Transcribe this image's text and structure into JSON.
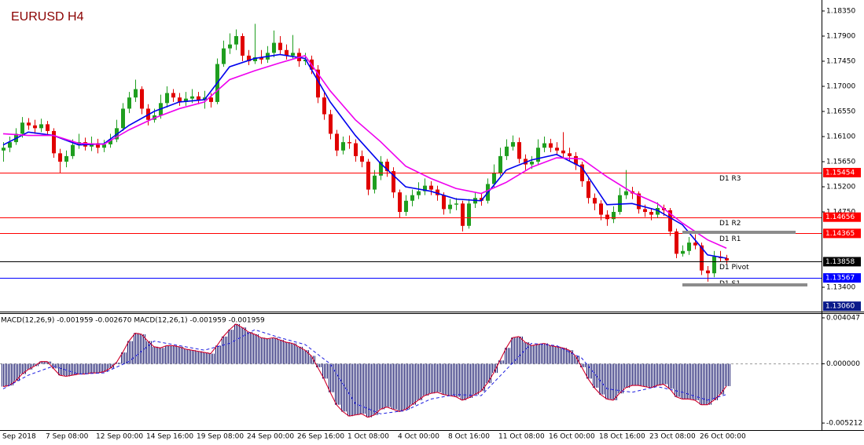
{
  "chart_data": [
    {
      "type": "candlestick",
      "title": "EURUSD H4",
      "categories": [
        "Sep 2018",
        null,
        null,
        null,
        null,
        null,
        null,
        "7 Sep 08:00",
        null,
        null,
        null,
        null,
        null,
        null,
        null,
        "12 Sep 00:00",
        null,
        null,
        null,
        null,
        null,
        null,
        null,
        "14 Sep 16:00",
        null,
        null,
        null,
        null,
        null,
        null,
        null,
        "19 Sep 08:00",
        null,
        null,
        null,
        null,
        null,
        null,
        null,
        "24 Sep 00:00",
        null,
        null,
        null,
        null,
        null,
        null,
        null,
        "26 Sep 16:00",
        null,
        null,
        null,
        null,
        null,
        null,
        null,
        "1 Oct 08:00",
        null,
        null,
        null,
        null,
        null,
        null,
        null,
        "4 Oct 00:00",
        null,
        null,
        null,
        null,
        null,
        null,
        null,
        "8 Oct 16:00",
        null,
        null,
        null,
        null,
        null,
        null,
        null,
        "11 Oct 08:00",
        null,
        null,
        null,
        null,
        null,
        null,
        null,
        "16 Oct 00:00",
        null,
        null,
        null,
        null,
        null,
        null,
        null,
        "18 Oct 16:00",
        null,
        null,
        null,
        null,
        null,
        null,
        null,
        "23 Oct 08:00",
        null,
        null,
        null,
        null,
        null,
        null,
        null,
        "26 Oct 00:00",
        null,
        null,
        null,
        null
      ],
      "open": [
        1.1585,
        1.159,
        1.16,
        1.1615,
        1.1635,
        1.163,
        1.1625,
        1.1632,
        1.162,
        1.158,
        1.1565,
        1.1575,
        1.1595,
        1.16,
        1.1592,
        1.1598,
        1.159,
        1.1596,
        1.1605,
        1.1625,
        1.166,
        1.168,
        1.1695,
        1.166,
        1.164,
        1.1648,
        1.167,
        1.1688,
        1.168,
        1.1672,
        1.1678,
        1.1682,
        1.1676,
        1.168,
        1.1672,
        1.174,
        1.1768,
        1.1775,
        1.179,
        1.1755,
        1.1745,
        1.1752,
        1.1748,
        1.176,
        1.1778,
        1.1765,
        1.1755,
        1.176,
        1.1745,
        1.1748,
        1.173,
        1.168,
        1.165,
        1.1615,
        1.1585,
        1.16,
        1.1598,
        1.1575,
        1.1565,
        1.1515,
        1.154,
        1.1565,
        1.1548,
        1.151,
        1.1475,
        1.1495,
        1.1505,
        1.1512,
        1.1522,
        1.1515,
        1.1505,
        1.148,
        1.1488,
        1.149,
        1.145,
        1.149,
        1.15,
        1.1495,
        1.1525,
        1.1545,
        1.1575,
        1.1592,
        1.16,
        1.157,
        1.156,
        1.1565,
        1.159,
        1.1598,
        1.159,
        1.1585,
        1.158,
        1.1575,
        1.156,
        1.153,
        1.15,
        1.149,
        1.147,
        1.1462,
        1.1475,
        1.1505,
        1.1512,
        1.1508,
        1.148,
        1.1475,
        1.147,
        1.1482,
        1.1478,
        1.144,
        1.14,
        1.1405,
        1.142,
        1.1415,
        1.137,
        1.1365,
        1.1395,
        1.1392
      ],
      "high": [
        1.16,
        1.161,
        1.1625,
        1.1645,
        1.1643,
        1.164,
        1.1642,
        1.1638,
        1.1625,
        1.1588,
        1.1585,
        1.1605,
        1.1615,
        1.1608,
        1.161,
        1.1606,
        1.1604,
        1.1615,
        1.164,
        1.167,
        1.169,
        1.1712,
        1.17,
        1.1668,
        1.166,
        1.1685,
        1.17,
        1.1695,
        1.1688,
        1.169,
        1.1695,
        1.169,
        1.1692,
        1.1688,
        1.175,
        1.1782,
        1.1795,
        1.1802,
        1.1795,
        1.1765,
        1.1812,
        1.1765,
        1.1772,
        1.18,
        1.179,
        1.1775,
        1.1792,
        1.1768,
        1.176,
        1.1755,
        1.1738,
        1.169,
        1.1658,
        1.1622,
        1.161,
        1.1612,
        1.1605,
        1.1585,
        1.157,
        1.155,
        1.1575,
        1.157,
        1.1555,
        1.1515,
        1.1505,
        1.1515,
        1.1528,
        1.1535,
        1.153,
        1.1522,
        1.151,
        1.1498,
        1.15,
        1.1495,
        1.1498,
        1.151,
        1.1508,
        1.1535,
        1.156,
        1.159,
        1.1605,
        1.1612,
        1.1608,
        1.1578,
        1.1575,
        1.1605,
        1.161,
        1.1606,
        1.16,
        1.1618,
        1.159,
        1.1582,
        1.1565,
        1.1535,
        1.1508,
        1.1496,
        1.1478,
        1.1485,
        1.1518,
        1.155,
        1.152,
        1.1512,
        1.1488,
        1.1482,
        1.1492,
        1.1488,
        1.1482,
        1.1445,
        1.1415,
        1.143,
        1.1435,
        1.142,
        1.1378,
        1.1405,
        1.1405,
        1.1398
      ],
      "low": [
        1.1565,
        1.1582,
        1.1595,
        1.1608,
        1.1622,
        1.1615,
        1.1618,
        1.1612,
        1.1572,
        1.1545,
        1.1555,
        1.157,
        1.1588,
        1.1585,
        1.1584,
        1.158,
        1.1582,
        1.159,
        1.16,
        1.162,
        1.1652,
        1.1672,
        1.165,
        1.163,
        1.1635,
        1.1642,
        1.1662,
        1.1672,
        1.1665,
        1.1665,
        1.167,
        1.1668,
        1.166,
        1.1662,
        1.1668,
        1.1735,
        1.1758,
        1.1765,
        1.1745,
        1.1738,
        1.174,
        1.174,
        1.1742,
        1.1752,
        1.1758,
        1.1748,
        1.175,
        1.1735,
        1.1738,
        1.1722,
        1.167,
        1.164,
        1.1605,
        1.1575,
        1.1578,
        1.1588,
        1.1565,
        1.1555,
        1.1505,
        1.1508,
        1.1532,
        1.1538,
        1.15,
        1.1465,
        1.1468,
        1.1485,
        1.1498,
        1.1505,
        1.1505,
        1.1495,
        1.147,
        1.1472,
        1.1478,
        1.144,
        1.1445,
        1.1482,
        1.1486,
        1.149,
        1.1518,
        1.154,
        1.1568,
        1.1585,
        1.1562,
        1.155,
        1.1552,
        1.156,
        1.1582,
        1.1582,
        1.1576,
        1.1572,
        1.1566,
        1.155,
        1.152,
        1.149,
        1.1478,
        1.146,
        1.145,
        1.1455,
        1.147,
        1.1498,
        1.1498,
        1.1472,
        1.1466,
        1.146,
        1.1464,
        1.1468,
        1.1432,
        1.1392,
        1.1395,
        1.1398,
        1.1408,
        1.1362,
        1.135,
        1.1358,
        1.1385,
        1.1382
      ],
      "close": [
        1.159,
        1.16,
        1.1615,
        1.1635,
        1.163,
        1.1625,
        1.1632,
        1.162,
        1.158,
        1.1565,
        1.1575,
        1.1595,
        1.16,
        1.1592,
        1.1598,
        1.159,
        1.1596,
        1.1605,
        1.1625,
        1.166,
        1.168,
        1.1695,
        1.166,
        1.164,
        1.1648,
        1.167,
        1.1688,
        1.168,
        1.1672,
        1.1678,
        1.1682,
        1.1676,
        1.168,
        1.1672,
        1.174,
        1.1768,
        1.1775,
        1.179,
        1.1755,
        1.1745,
        1.1752,
        1.1748,
        1.176,
        1.1778,
        1.1765,
        1.1755,
        1.176,
        1.1745,
        1.1748,
        1.173,
        1.168,
        1.165,
        1.1615,
        1.1585,
        1.16,
        1.1598,
        1.1575,
        1.1565,
        1.1515,
        1.154,
        1.1565,
        1.1548,
        1.151,
        1.1475,
        1.1495,
        1.1505,
        1.1512,
        1.1522,
        1.1515,
        1.1505,
        1.148,
        1.1488,
        1.149,
        1.145,
        1.149,
        1.15,
        1.1495,
        1.1525,
        1.1545,
        1.1575,
        1.1592,
        1.16,
        1.157,
        1.156,
        1.1565,
        1.159,
        1.1598,
        1.159,
        1.1585,
        1.158,
        1.1575,
        1.156,
        1.153,
        1.15,
        1.149,
        1.147,
        1.1462,
        1.1475,
        1.1505,
        1.1512,
        1.1508,
        1.148,
        1.1475,
        1.147,
        1.1482,
        1.1478,
        1.144,
        1.14,
        1.1405,
        1.142,
        1.1415,
        1.137,
        1.1365,
        1.1395,
        1.1392,
        1.1388
      ],
      "up_color": "#1f9e1f",
      "down_color": "#e00000",
      "lines": [
        {
          "color": "#0000ee",
          "x": [
            0,
            4,
            8,
            12,
            16,
            20,
            24,
            28,
            32,
            36,
            40,
            44,
            48,
            52,
            56,
            60,
            64,
            68,
            72,
            76,
            80,
            84,
            88,
            92,
            96,
            100,
            104,
            108,
            112,
            115
          ],
          "values": [
            1.1595,
            1.1618,
            1.1612,
            1.1595,
            1.1597,
            1.163,
            1.1655,
            1.1672,
            1.1676,
            1.1735,
            1.175,
            1.1757,
            1.175,
            1.1672,
            1.1612,
            1.1562,
            1.152,
            1.1512,
            1.1498,
            1.1495,
            1.155,
            1.1568,
            1.1578,
            1.1555,
            1.1488,
            1.149,
            1.1478,
            1.1452,
            1.1398,
            1.1392
          ]
        },
        {
          "color": "#ee00ee",
          "x": [
            0,
            4,
            8,
            12,
            16,
            20,
            24,
            28,
            32,
            36,
            40,
            44,
            48,
            52,
            56,
            60,
            64,
            68,
            72,
            76,
            80,
            84,
            88,
            92,
            96,
            100,
            104,
            108,
            112,
            115
          ],
          "values": [
            1.1615,
            1.1612,
            1.1612,
            1.1598,
            1.1596,
            1.1622,
            1.1643,
            1.166,
            1.1672,
            1.1712,
            1.1728,
            1.1742,
            1.1755,
            1.1692,
            1.164,
            1.1601,
            1.1557,
            1.1535,
            1.1517,
            1.1508,
            1.1528,
            1.1555,
            1.1572,
            1.157,
            1.1538,
            1.151,
            1.149,
            1.1455,
            1.1425,
            1.141
          ]
        }
      ],
      "levels": [
        {
          "name": "D1 R3",
          "value": 1.15454,
          "color": "#ff0000"
        },
        {
          "name": "D1 R2",
          "value": 1.14656,
          "color": "#ff0000"
        },
        {
          "name": "D1 R1",
          "value": 1.14365,
          "color": "#ff0000"
        },
        {
          "name": "D1 Pivot",
          "value": 1.13858,
          "color": "#000000"
        },
        {
          "name": "D1 S1",
          "value": 1.13567,
          "color": "#0000ff"
        }
      ],
      "price_tags": [
        {
          "value": 1.1306,
          "label": "1.13060",
          "color": "#0a1a8a"
        }
      ],
      "ylim": [
        1.12964,
        1.18547
      ],
      "yticks": [
        {
          "value": 1.1835,
          "label": "1.18350"
        },
        {
          "value": 1.179,
          "label": "1.17900"
        },
        {
          "value": 1.1745,
          "label": "1.17450"
        },
        {
          "value": 1.17,
          "label": "1.17000"
        },
        {
          "value": 1.1655,
          "label": "1.16550"
        },
        {
          "value": 1.161,
          "label": "1.16100"
        },
        {
          "value": 1.1565,
          "label": "1.15650"
        },
        {
          "value": 1.152,
          "label": "1.15200"
        },
        {
          "value": 1.1475,
          "label": "1.14750"
        },
        {
          "value": 1.134,
          "label": "1.13400"
        }
      ]
    },
    {
      "type": "macd",
      "label": "MACD(12,26,9) -0.001959 -0.002670 MACD(12,26,1) -0.001959 -0.001959",
      "histogram_color": "#1c1c70",
      "line_color": "#d0002a",
      "values": [
        -0.002,
        -0.0019,
        -0.0015,
        -0.0009,
        -0.0005,
        -0.0002,
        0.0002,
        0.0002,
        -0.0004,
        -0.001,
        -0.0011,
        -0.001,
        -0.0009,
        -0.0009,
        -0.0008,
        -0.0008,
        -0.0007,
        -0.0004,
        0.0001,
        0.001,
        0.002,
        0.0027,
        0.0026,
        0.002,
        0.0015,
        0.0014,
        0.0016,
        0.0016,
        0.0015,
        0.0013,
        0.0012,
        0.0011,
        0.001,
        0.0009,
        0.0016,
        0.0024,
        0.003,
        0.0035,
        0.0032,
        0.0028,
        0.0026,
        0.0023,
        0.0022,
        0.0023,
        0.0021,
        0.0019,
        0.0018,
        0.0015,
        0.0012,
        0.0007,
        -0.0003,
        -0.0013,
        -0.0025,
        -0.0036,
        -0.0042,
        -0.0046,
        -0.0045,
        -0.0044,
        -0.0047,
        -0.0045,
        -0.004,
        -0.0038,
        -0.004,
        -0.0042,
        -0.004,
        -0.0036,
        -0.0032,
        -0.0028,
        -0.0026,
        -0.0025,
        -0.0027,
        -0.0028,
        -0.0029,
        -0.0032,
        -0.003,
        -0.0027,
        -0.0024,
        -0.0017,
        -0.0008,
        0.0003,
        0.0014,
        0.0023,
        0.0024,
        0.0019,
        0.0016,
        0.0017,
        0.0018,
        0.0016,
        0.0015,
        0.0014,
        0.0012,
        0.0007,
        -0.0003,
        -0.0013,
        -0.0021,
        -0.0027,
        -0.0031,
        -0.0032,
        -0.0026,
        -0.0021,
        -0.0019,
        -0.0019,
        -0.002,
        -0.0021,
        -0.0019,
        -0.0018,
        -0.0022,
        -0.0029,
        -0.0031,
        -0.0031,
        -0.0032,
        -0.0036,
        -0.0036,
        -0.0032,
        -0.0027,
        -0.001959
      ],
      "signal": {
        "color": "#2020e0",
        "x": [
          0,
          4,
          8,
          12,
          16,
          20,
          24,
          28,
          32,
          36,
          40,
          44,
          48,
          52,
          56,
          60,
          64,
          68,
          72,
          76,
          80,
          84,
          88,
          92,
          96,
          100,
          104,
          108,
          112,
          115
        ],
        "values": [
          -0.0022,
          -0.001,
          -0.0002,
          -0.0009,
          -0.0008,
          0.0002,
          0.002,
          0.0016,
          0.0012,
          0.0018,
          0.003,
          0.0023,
          0.0017,
          0.0,
          -0.0035,
          -0.0044,
          -0.0041,
          -0.0031,
          -0.0027,
          -0.0028,
          -0.0005,
          0.0018,
          0.0016,
          0.0005,
          -0.0022,
          -0.0025,
          -0.002,
          -0.0025,
          -0.0032,
          -0.0027
        ]
      },
      "ylim": [
        -0.00583,
        0.004459
      ],
      "yticks": [
        0.004047,
        {
          "value": 0,
          "label": "0.000000"
        },
        -0.005212
      ]
    }
  ]
}
